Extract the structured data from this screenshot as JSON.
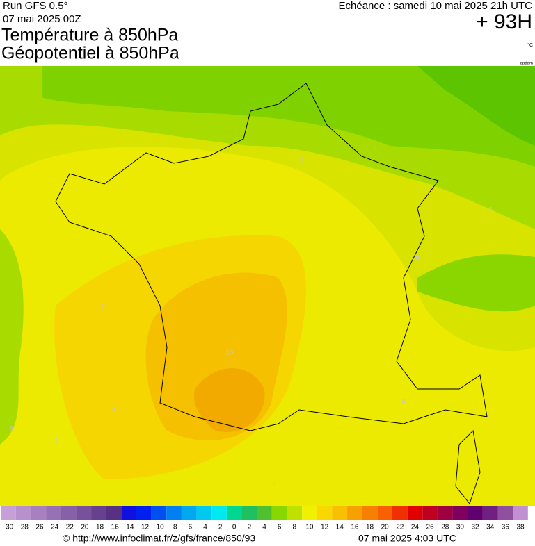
{
  "header": {
    "run": "Run GFS 0.5°",
    "run_date": "07 mai 2025 00Z",
    "title_1": "Température à 850hPa",
    "title_2": "Géopotentiel à 850hPa",
    "echeance": "Echéance : samedi 10 mai 2025 21h UTC",
    "lead": "+ 93H",
    "unit": "°C",
    "unit_2": "gpdam"
  },
  "map": {
    "contour_labels": [
      6,
      6,
      8,
      8,
      10,
      10,
      8,
      8,
      6,
      8
    ]
  },
  "colorbar": {
    "ticks": [
      -30,
      -28,
      -26,
      -24,
      -22,
      -20,
      -18,
      -16,
      -14,
      -12,
      -10,
      -8,
      -6,
      -4,
      -2,
      0,
      2,
      4,
      6,
      8,
      10,
      12,
      14,
      16,
      18,
      20,
      22,
      24,
      26,
      28,
      30,
      32,
      34,
      36,
      38
    ],
    "colors": [
      "#c8a0d8",
      "#b890cc",
      "#a880c0",
      "#9870b4",
      "#8860a8",
      "#78509c",
      "#684090",
      "#583084",
      "#1010e0",
      "#0020f0",
      "#0050f0",
      "#0080f0",
      "#00a8f0",
      "#00c8f0",
      "#00e8f0",
      "#00d890",
      "#20c060",
      "#50c030",
      "#88d800",
      "#c0e000",
      "#f0f000",
      "#f8d800",
      "#f8c000",
      "#f8a000",
      "#f88000",
      "#f86000",
      "#f03000",
      "#e00000",
      "#c00020",
      "#a00040",
      "#800060",
      "#600070",
      "#702080",
      "#9050a0",
      "#c090d0"
    ]
  },
  "footer": {
    "url": "© http://www.infoclimat.fr/z/gfs/france/850/93",
    "generated": "07 mai 2025  4:03 UTC"
  }
}
